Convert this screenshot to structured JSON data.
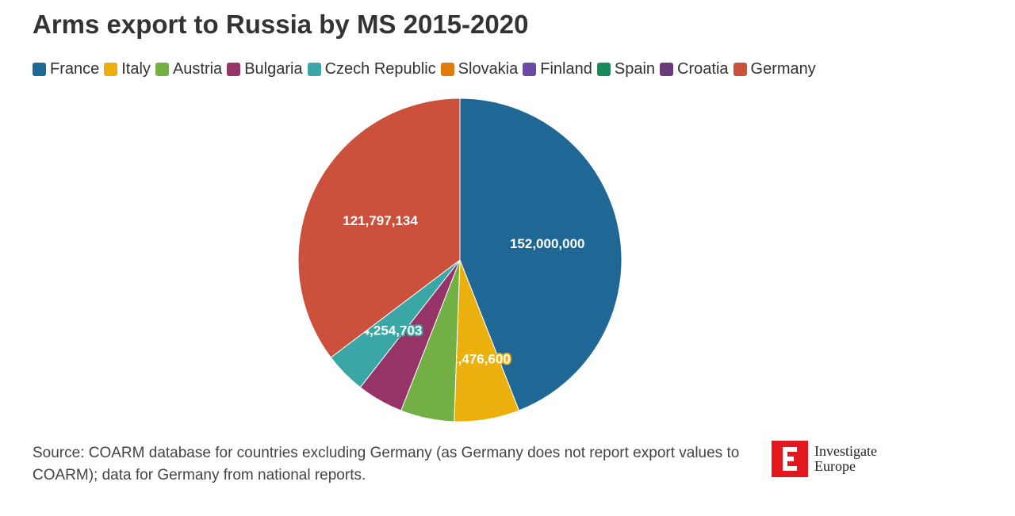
{
  "chart_data": {
    "type": "pie",
    "title": "Arms export to Russia by MS 2015-2020",
    "legend_position": "top-left",
    "slices": [
      {
        "name": "France",
        "value": 152000000,
        "label": "152,000,000",
        "color": "#1f6795"
      },
      {
        "name": "Italy",
        "value": 22476600,
        "label": "22,476,600",
        "color": "#ebb00d"
      },
      {
        "name": "Austria",
        "value": 18500000,
        "label": "",
        "color": "#72af45"
      },
      {
        "name": "Bulgaria",
        "value": 16000000,
        "label": "",
        "color": "#963468"
      },
      {
        "name": "Czech Republic",
        "value": 14254703,
        "label": "14,254,703",
        "color": "#3aa6a6"
      },
      {
        "name": "Slovakia",
        "value": 0,
        "label": "",
        "color": "#e07b10"
      },
      {
        "name": "Finland",
        "value": 0,
        "label": "",
        "color": "#6a4aa3"
      },
      {
        "name": "Spain",
        "value": 0,
        "label": "",
        "color": "#1a8a5a"
      },
      {
        "name": "Croatia",
        "value": 0,
        "label": "",
        "color": "#6a3a7a"
      },
      {
        "name": "Germany",
        "value": 121797134,
        "label": "121,797,134",
        "color": "#cb513d"
      }
    ]
  },
  "source_text": "Source: COARM database for countries excluding Germany (as Germany does not report export values to COARM); data for Germany from national reports.",
  "brand": {
    "line1": "Investigate",
    "line2": "Europe",
    "color": "#e3181e"
  }
}
